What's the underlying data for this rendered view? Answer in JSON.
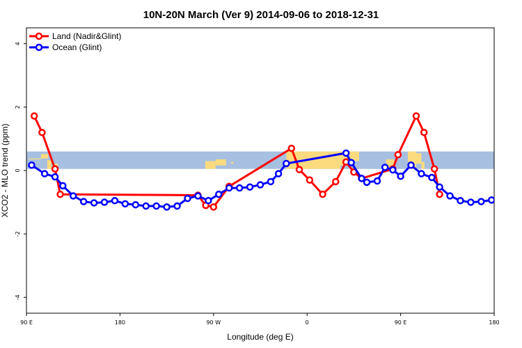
{
  "chart_data": {
    "type": "line",
    "title": "10N-20N March (Ver 9)   2014-09-06 to 2018-12-31",
    "xlabel": "Longitude (deg E)",
    "ylabel": "XCO2 - MLO trend (ppm)",
    "xlim": [
      90,
      540
    ],
    "ylim": [
      -4.5,
      4.5
    ],
    "xticks": [
      {
        "value": 90,
        "label": "90 E"
      },
      {
        "value": 180,
        "label": "180"
      },
      {
        "value": 270,
        "label": "90 W"
      },
      {
        "value": 360,
        "label": "0"
      },
      {
        "value": 450,
        "label": "90 E"
      },
      {
        "value": 540,
        "label": "180"
      }
    ],
    "yticks": [
      -4,
      -2,
      0,
      2,
      4
    ],
    "legend_position": "top-left",
    "land_mask_band": {
      "ymin": 0.05,
      "ymax": 0.6,
      "ocean_color": "#a7bfe0",
      "land_color": "#fcdb7f"
    },
    "series": [
      {
        "name": "Land (Nadir&Glint)",
        "color": "#ff0000",
        "points": [
          [
            97.5,
            1.72
          ],
          [
            105,
            1.2
          ],
          [
            117.5,
            0.05
          ],
          [
            122.5,
            -0.75
          ],
          [
            255,
            -0.78
          ],
          [
            262.5,
            -1.1
          ],
          [
            270,
            -1.15
          ],
          [
            285,
            -0.5
          ],
          [
            345,
            0.7
          ],
          [
            352.5,
            0.03
          ],
          [
            362.5,
            -0.3
          ],
          [
            375,
            -0.75
          ],
          [
            387.5,
            -0.35
          ],
          [
            397.5,
            0.27
          ],
          [
            405,
            -0.05
          ],
          [
            412.5,
            -0.25
          ],
          [
            442.5,
            0.05
          ],
          [
            447.5,
            0.5
          ],
          [
            465,
            1.72
          ],
          [
            472.5,
            1.2
          ],
          [
            482.5,
            0.05
          ],
          [
            487.5,
            -0.75
          ]
        ]
      },
      {
        "name": "Ocean (Glint)",
        "color": "#0000ff",
        "points": [
          [
            95,
            0.17
          ],
          [
            107.5,
            -0.1
          ],
          [
            117.5,
            -0.2
          ],
          [
            125,
            -0.48
          ],
          [
            135,
            -0.8
          ],
          [
            145,
            -0.98
          ],
          [
            155,
            -1.02
          ],
          [
            165,
            -1.0
          ],
          [
            175,
            -0.95
          ],
          [
            185,
            -1.05
          ],
          [
            195,
            -1.08
          ],
          [
            205,
            -1.12
          ],
          [
            215,
            -1.12
          ],
          [
            225,
            -1.15
          ],
          [
            235,
            -1.12
          ],
          [
            245,
            -0.88
          ],
          [
            255,
            -0.8
          ],
          [
            265,
            -0.95
          ],
          [
            275,
            -0.75
          ],
          [
            285,
            -0.55
          ],
          [
            295,
            -0.55
          ],
          [
            305,
            -0.52
          ],
          [
            315,
            -0.45
          ],
          [
            325,
            -0.35
          ],
          [
            332.5,
            -0.1
          ],
          [
            340,
            0.22
          ],
          [
            397.5,
            0.55
          ],
          [
            402.5,
            0.25
          ],
          [
            412.5,
            -0.25
          ],
          [
            417.5,
            -0.37
          ],
          [
            427.5,
            -0.33
          ],
          [
            435,
            0.1
          ],
          [
            442.5,
            0.02
          ],
          [
            450,
            -0.18
          ],
          [
            460,
            0.17
          ],
          [
            470,
            -0.1
          ],
          [
            480,
            -0.22
          ],
          [
            487.5,
            -0.52
          ],
          [
            497.5,
            -0.8
          ],
          [
            507.5,
            -0.95
          ],
          [
            517.5,
            -1.0
          ],
          [
            527.5,
            -0.98
          ],
          [
            537.5,
            -0.93
          ]
        ]
      }
    ]
  }
}
